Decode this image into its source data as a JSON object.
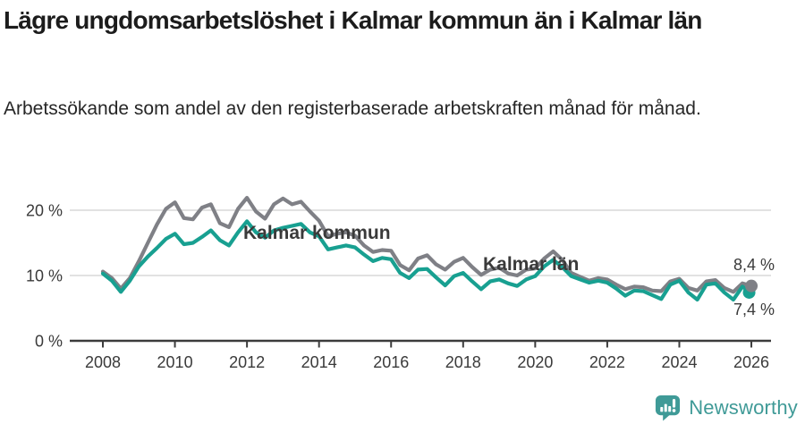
{
  "header": {
    "title": "Lägre ungdomsarbetslöshet i Kalmar kommun än i Kalmar län",
    "subtitle": "Arbetssökande som andel av den registerbaserade arbetskraften månad för månad."
  },
  "footer": {
    "brand": "Newsworthy",
    "brand_color": "#3f9a97"
  },
  "chart_data": {
    "type": "line",
    "x_start": 2008,
    "x_step": 0.25,
    "x_ticks": [
      2008,
      2010,
      2012,
      2014,
      2016,
      2018,
      2020,
      2022,
      2024,
      2026
    ],
    "y_ticks": [
      {
        "value": 0,
        "label": "0 %"
      },
      {
        "value": 10,
        "label": "10 %"
      },
      {
        "value": 20,
        "label": "20 %"
      }
    ],
    "ylim": [
      0,
      23
    ],
    "xlim": [
      2008,
      2026.2
    ],
    "grid": "horizontal-only",
    "legend_position": "inline-labels",
    "series": [
      {
        "name": "Kalmar län",
        "color": "#7f8086",
        "end_label": "8,4 %",
        "end_value": 8.4,
        "label_pos": {
          "x": 540,
          "y": 110
        },
        "end_label_pos": {
          "x": 866,
          "y": 110
        },
        "values": [
          10.6,
          9.6,
          8.0,
          9.6,
          12.2,
          15.0,
          17.8,
          20.2,
          21.2,
          18.8,
          18.6,
          20.4,
          20.9,
          18.0,
          17.4,
          20.2,
          21.9,
          19.8,
          18.7,
          20.9,
          21.8,
          20.9,
          21.3,
          19.8,
          18.4,
          16.0,
          16.4,
          16.6,
          16.1,
          14.6,
          13.6,
          13.9,
          13.8,
          11.6,
          10.8,
          12.6,
          13.1,
          11.7,
          10.9,
          12.1,
          12.7,
          11.3,
          10.1,
          10.9,
          11.2,
          10.3,
          10.0,
          10.9,
          11.1,
          12.6,
          13.7,
          12.4,
          10.4,
          9.8,
          9.2,
          9.6,
          9.4,
          8.6,
          7.9,
          8.3,
          8.2,
          7.7,
          7.6,
          9.1,
          9.5,
          8.1,
          7.7,
          9.1,
          9.3,
          8.1,
          7.5,
          8.8,
          8.4
        ]
      },
      {
        "name": "Kalmar kommun",
        "color": "#18a091",
        "end_label": "7,4 %",
        "end_value": 7.4,
        "label_pos": {
          "x": 272,
          "y": 75
        },
        "end_label_pos": {
          "x": 866,
          "y": 160
        },
        "values": [
          10.3,
          9.2,
          7.5,
          9.2,
          11.4,
          12.9,
          14.2,
          15.6,
          16.4,
          14.8,
          15.0,
          15.9,
          16.9,
          15.4,
          14.6,
          16.6,
          18.3,
          16.6,
          15.8,
          16.9,
          17.3,
          17.6,
          17.9,
          16.6,
          16.0,
          14.0,
          14.3,
          14.6,
          14.3,
          13.2,
          12.2,
          12.7,
          12.5,
          10.4,
          9.6,
          10.9,
          11.0,
          9.7,
          8.5,
          9.9,
          10.4,
          9.1,
          7.9,
          9.1,
          9.4,
          8.8,
          8.4,
          9.4,
          9.9,
          11.4,
          12.4,
          11.3,
          9.9,
          9.4,
          8.9,
          9.2,
          8.9,
          8.0,
          6.9,
          7.7,
          7.6,
          7.0,
          6.4,
          8.6,
          9.2,
          7.4,
          6.3,
          8.6,
          8.8,
          7.4,
          6.3,
          8.3,
          7.4
        ]
      }
    ]
  }
}
